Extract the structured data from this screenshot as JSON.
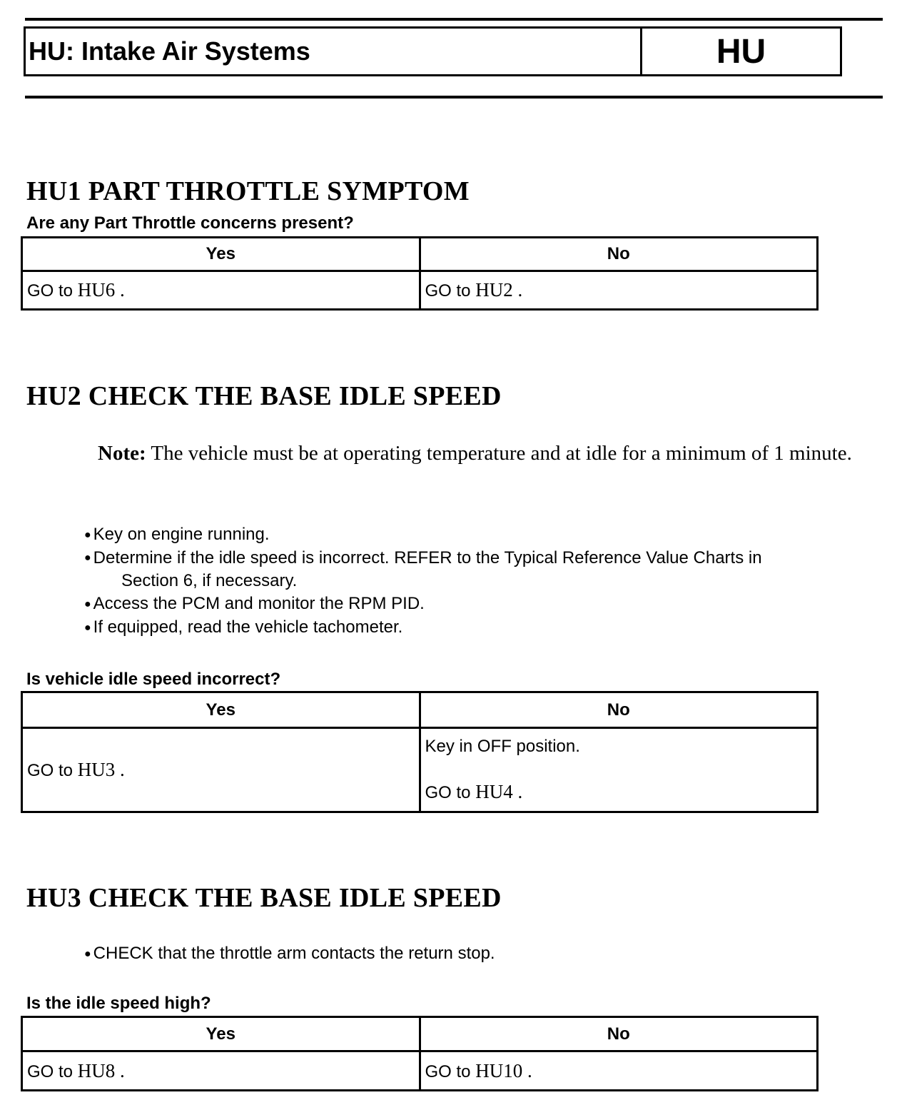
{
  "header": {
    "title": "HU: Intake Air Systems",
    "code": "HU"
  },
  "hu1": {
    "heading": "HU1 PART THROTTLE SYMPTOM",
    "question": "Are any Part Throttle concerns present?",
    "yes": "Yes",
    "no": "No",
    "yes_prefix": "GO to",
    "yes_ref": "HU6 .",
    "no_prefix": "GO to",
    "no_ref": "HU2 ."
  },
  "hu2": {
    "heading": "HU2 CHECK THE BASE IDLE SPEED",
    "note_label": "Note:",
    "note_text": " The vehicle must be at operating temperature and at idle for a minimum of 1 minute.",
    "bullets": [
      "Key on engine running.",
      "Determine if the idle speed is incorrect. REFER to the Typical Reference Value Charts in",
      "Access the PCM and monitor the RPM PID.",
      "If equipped, read the vehicle tachometer."
    ],
    "bullet2_cont": "Section 6, if necessary.",
    "question": "Is vehicle idle speed incorrect?",
    "yes": "Yes",
    "no": "No",
    "yes_prefix": "GO to",
    "yes_ref": "HU3 .",
    "no_line1": "Key in OFF position.",
    "no_prefix": "GO to",
    "no_ref": "HU4 ."
  },
  "hu3": {
    "heading": "HU3 CHECK THE BASE IDLE SPEED",
    "bullets": [
      "CHECK that the throttle arm contacts the return stop."
    ],
    "question": "Is the idle speed high?",
    "yes": "Yes",
    "no": "No",
    "yes_prefix": "GO to",
    "yes_ref": "HU8 .",
    "no_prefix": "GO to",
    "no_ref": "HU10 ."
  }
}
